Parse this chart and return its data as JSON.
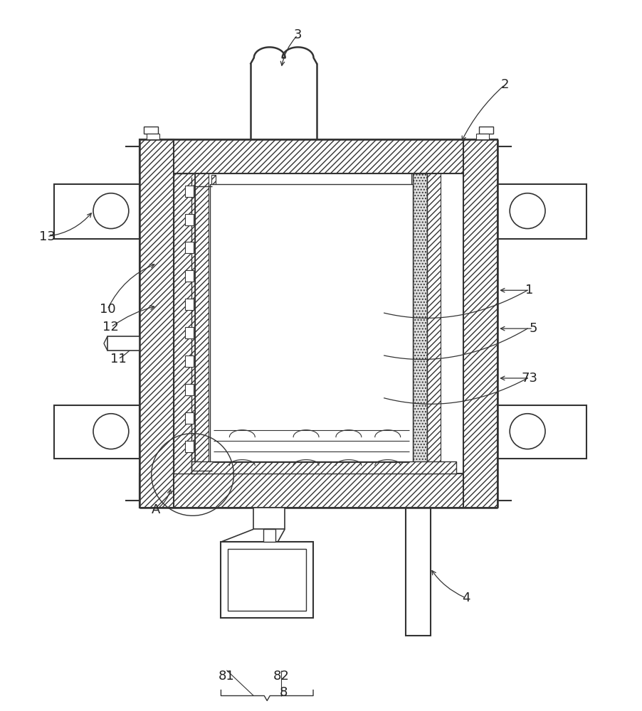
{
  "bg_color": "#ffffff",
  "lc": "#333333",
  "fig_width": 9.03,
  "fig_height": 10.0
}
